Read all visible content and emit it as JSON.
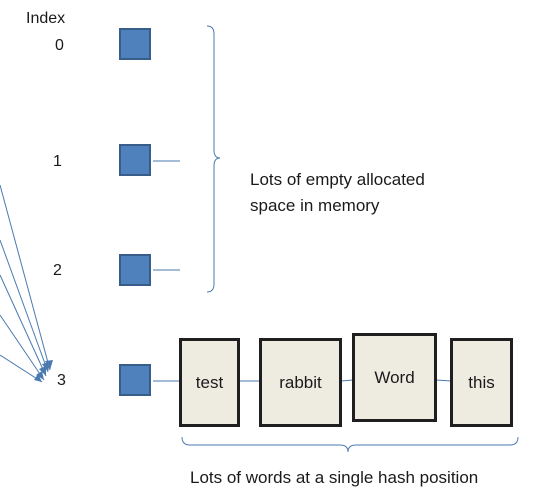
{
  "diagram": {
    "index_header": "Index",
    "indices": [
      "0",
      "1",
      "2",
      "3"
    ],
    "words": [
      "test",
      "rabbit",
      "Word",
      "this"
    ],
    "empty_space_note": [
      "Lots of empty allocated",
      "space in memory"
    ],
    "words_note": "Lots of words at a single hash position",
    "colors": {
      "cell_fill": "#4f81bd",
      "cell_border": "#385d8a",
      "word_fill": "#eeece1",
      "word_border": "#1f1f1f",
      "line": "#4a7ab0"
    }
  }
}
